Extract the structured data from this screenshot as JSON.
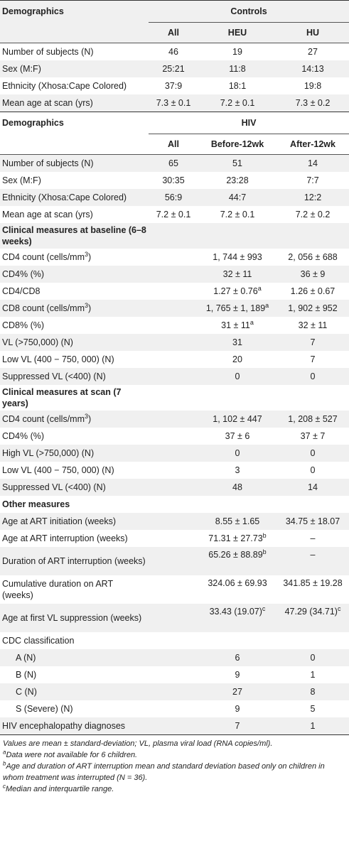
{
  "controls": {
    "section_label": "Demographics",
    "group_label": "Controls",
    "columns": [
      "All",
      "HEU",
      "HU"
    ],
    "rows": [
      {
        "label": "Number of subjects (N)",
        "values": [
          "46",
          "19",
          "27"
        ]
      },
      {
        "label": "Sex (M:F)",
        "values": [
          "25:21",
          "11:8",
          "14:13"
        ]
      },
      {
        "label": "Ethnicity (Xhosa:Cape Colored)",
        "values": [
          "37:9",
          "18:1",
          "19:8"
        ]
      },
      {
        "label": "Mean age at scan (yrs)",
        "values": [
          "7.3 ± 0.1",
          "7.2 ± 0.1",
          "7.3 ± 0.2"
        ]
      }
    ]
  },
  "hiv": {
    "section_label": "Demographics",
    "group_label": "HIV",
    "columns": [
      "All",
      "Before-12wk",
      "After-12wk"
    ],
    "rows": [
      {
        "label": "Number of subjects (N)",
        "values": [
          "65",
          "51",
          "14"
        ]
      },
      {
        "label": "Sex (M:F)",
        "values": [
          "30:35",
          "23:28",
          "7:7"
        ]
      },
      {
        "label": "Ethnicity (Xhosa:Cape Colored)",
        "values": [
          "56:9",
          "44:7",
          "12:2"
        ]
      },
      {
        "label": "Mean age at scan (yrs)",
        "values": [
          "7.2 ± 0.1",
          "7.2 ± 0.1",
          "7.2 ± 0.2"
        ]
      }
    ],
    "baseline_header": "Clinical measures at baseline (6–8 weeks)",
    "baseline_rows": [
      {
        "label": "CD4 count (cells/mm",
        "label_sup": "3",
        "label_after": ")",
        "before": "1, 744 ± 993",
        "before_sup": "",
        "after": "2, 056 ± 688",
        "after_sup": ""
      },
      {
        "label": "CD4% (%)",
        "label_sup": "",
        "label_after": "",
        "before": "32 ± 11",
        "before_sup": "",
        "after": "36 ± 9",
        "after_sup": ""
      },
      {
        "label": "CD4/CD8",
        "label_sup": "",
        "label_after": "",
        "before": "1.27 ± 0.76",
        "before_sup": "a",
        "after": "1.26 ± 0.67",
        "after_sup": ""
      },
      {
        "label": "CD8 count (cells/mm",
        "label_sup": "3",
        "label_after": ")",
        "before": "1, 765 ± 1, 189",
        "before_sup": "a",
        "after": "1, 902 ± 952",
        "after_sup": ""
      },
      {
        "label": "CD8% (%)",
        "label_sup": "",
        "label_after": "",
        "before": "31 ± 11",
        "before_sup": "a",
        "after": "32 ± 11",
        "after_sup": ""
      },
      {
        "label": "VL (>750,000) (N)",
        "label_sup": "",
        "label_after": "",
        "before": "31",
        "before_sup": "",
        "after": "7",
        "after_sup": ""
      },
      {
        "label": "Low VL (400 − 750, 000) (N)",
        "label_sup": "",
        "label_after": "",
        "before": "20",
        "before_sup": "",
        "after": "7",
        "after_sup": ""
      },
      {
        "label": "Suppressed VL (<400) (N)",
        "label_sup": "",
        "label_after": "",
        "before": "0",
        "before_sup": "",
        "after": "0",
        "after_sup": ""
      }
    ],
    "scan_header": "Clinical measures at scan (7 years)",
    "scan_rows": [
      {
        "label": "CD4 count (cells/mm",
        "label_sup": "3",
        "label_after": ")",
        "before": "1, 102 ± 447",
        "after": "1, 208 ± 527"
      },
      {
        "label": "CD4% (%)",
        "label_sup": "",
        "label_after": "",
        "before": "37 ± 6",
        "after": "37 ± 7"
      },
      {
        "label": "High VL (>750,000) (N)",
        "label_sup": "",
        "label_after": "",
        "before": "0",
        "after": "0"
      },
      {
        "label": "Low VL (400 − 750, 000) (N)",
        "label_sup": "",
        "label_after": "",
        "before": "3",
        "after": "0"
      },
      {
        "label": "Suppressed VL (<400) (N)",
        "label_sup": "",
        "label_after": "",
        "before": "48",
        "after": "14"
      }
    ],
    "other_header": "Other measures",
    "other_rows": [
      {
        "label": "Age at ART initiation (weeks)",
        "before": "8.55 ± 1.65",
        "before_sup": "",
        "after": "34.75 ± 18.07",
        "after_sup": ""
      },
      {
        "label": "Age at ART interruption (weeks)",
        "before": "71.31 ± 27.73",
        "before_sup": "b",
        "after": "–",
        "after_sup": ""
      },
      {
        "label": "Duration of ART interruption (weeks)",
        "before": "65.26 ± 88.89",
        "before_sup": "b",
        "after": "–",
        "after_sup": ""
      },
      {
        "label": "Cumulative duration on ART (weeks)",
        "before": "324.06 ± 69.93",
        "before_sup": "",
        "after": "341.85 ± 19.28",
        "after_sup": ""
      },
      {
        "label": "Age at first VL suppression (weeks)",
        "before": "33.43 (19.07)",
        "before_sup": "c",
        "after": "47.29 (34.71)",
        "after_sup": "c"
      }
    ],
    "cdc_label": "CDC classification",
    "cdc_rows": [
      {
        "label": "A (N)",
        "before": "6",
        "after": "0"
      },
      {
        "label": "B (N)",
        "before": "9",
        "after": "1"
      },
      {
        "label": "C (N)",
        "before": "27",
        "after": "8"
      },
      {
        "label": "S (Severe) (N)",
        "before": "9",
        "after": "5"
      }
    ],
    "enceph_row": {
      "label": "HIV encephalopathy diagnoses",
      "before": "7",
      "after": "1"
    }
  },
  "footnotes": {
    "main": "Values are mean ± standard-deviation; VL, plasma viral load (RNA copies/ml).",
    "a_mark": "a",
    "a": "Data were not available for 6 children.",
    "b_mark": "b",
    "b": "Age and duration of ART interruption mean and standard deviation based only on children in whom treatment was interrupted (N = 36).",
    "c_mark": "c",
    "c": "Median and interquartile range."
  }
}
